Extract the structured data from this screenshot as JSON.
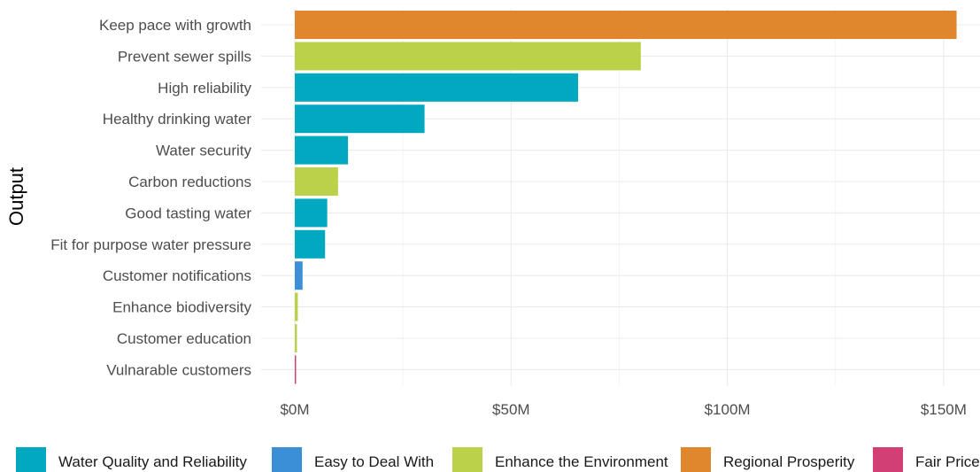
{
  "chart_data": {
    "type": "bar",
    "orientation": "horizontal",
    "title": "",
    "xlabel": "",
    "ylabel": "Output",
    "xlim": [
      0,
      158
    ],
    "x_ticks": [
      0,
      50,
      100,
      150
    ],
    "x_tick_labels": [
      "$0M",
      "$50M",
      "$100M",
      "$150M"
    ],
    "grid": true,
    "legend_position": "bottom",
    "categories": [
      "Keep pace with growth",
      "Prevent sewer spills",
      "High reliability",
      "Healthy drinking water",
      "Water security",
      "Carbon reductions",
      "Good tasting water",
      "Fit for purpose water pressure",
      "Customer notifications",
      "Enhance biodiversity",
      "Customer education",
      "Vulnarable customers"
    ],
    "values": [
      153,
      80,
      65.5,
      30,
      12.3,
      10,
      7.5,
      7,
      1.8,
      0.7,
      0.5,
      0.3
    ],
    "value_units": "$M",
    "bar_groups": [
      "Regional Prosperity",
      "Enhance the Environment",
      "Water Quality and Reliability",
      "Water Quality and Reliability",
      "Water Quality and Reliability",
      "Enhance the Environment",
      "Water Quality and Reliability",
      "Water Quality and Reliability",
      "Easy to Deal With",
      "Enhance the Environment",
      "Enhance the Environment",
      "Fair Price"
    ],
    "legend": [
      {
        "name": "Water Quality and Reliability",
        "color": "#00a9bf"
      },
      {
        "name": "Easy to Deal With",
        "color": "#3a8fd6"
      },
      {
        "name": "Enhance the Environment",
        "color": "#bcd14a"
      },
      {
        "name": "Regional Prosperity",
        "color": "#e0872e"
      },
      {
        "name": "Fair Price",
        "color": "#d23f75"
      }
    ]
  }
}
